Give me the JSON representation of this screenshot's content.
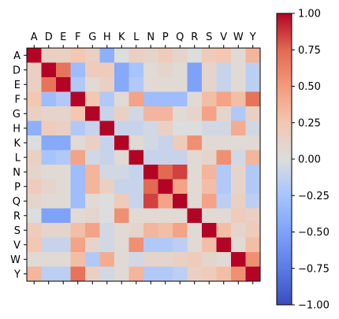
{
  "chart_data": {
    "type": "heatmap",
    "title": "",
    "xlabel": "",
    "ylabel": "",
    "x_labels": [
      "A",
      "D",
      "E",
      "F",
      "G",
      "H",
      "K",
      "L",
      "N",
      "P",
      "Q",
      "R",
      "S",
      "V",
      "W",
      "Y"
    ],
    "y_labels": [
      "A",
      "D",
      "E",
      "F",
      "G",
      "H",
      "K",
      "L",
      "N",
      "P",
      "Q",
      "R",
      "S",
      "V",
      "W",
      "Y"
    ],
    "x_tick_position": "top",
    "colormap": "coolwarm",
    "vmin": -1.0,
    "vmax": 1.0,
    "colorbar_ticks": [
      -1.0,
      -0.75,
      -0.5,
      -0.25,
      0.0,
      0.25,
      0.5,
      0.75,
      1.0
    ],
    "colorbar_tick_labels": [
      "−1.00",
      "−0.75",
      "−0.50",
      "−0.25",
      "0.00",
      "0.25",
      "0.50",
      "0.75",
      "1.00"
    ],
    "values": [
      [
        1.0,
        0.15,
        0.15,
        0.25,
        0.15,
        -0.4,
        0.0,
        0.15,
        0.1,
        0.2,
        0.1,
        0.0,
        0.2,
        0.25,
        0.05,
        0.35
      ],
      [
        0.15,
        1.0,
        0.7,
        -0.3,
        0.2,
        0.2,
        -0.45,
        -0.25,
        0.05,
        0.1,
        0.05,
        -0.5,
        0.1,
        -0.1,
        0.05,
        -0.15
      ],
      [
        0.15,
        0.7,
        1.0,
        -0.2,
        0.05,
        0.15,
        -0.45,
        -0.2,
        0.05,
        0.05,
        0.05,
        -0.5,
        0.1,
        -0.1,
        0.05,
        -0.15
      ],
      [
        0.25,
        -0.3,
        -0.2,
        1.0,
        0.25,
        -0.2,
        0.05,
        0.45,
        -0.3,
        -0.3,
        -0.3,
        0.05,
        0.3,
        0.45,
        0.3,
        0.7
      ],
      [
        0.15,
        0.1,
        0.1,
        0.25,
        1.0,
        -0.1,
        0.15,
        -0.05,
        0.35,
        0.35,
        0.05,
        0.1,
        0.45,
        0.1,
        -0.2,
        0.15
      ],
      [
        -0.4,
        0.2,
        0.15,
        -0.2,
        -0.1,
        1.0,
        -0.1,
        -0.1,
        -0.05,
        0.15,
        0.0,
        0.0,
        -0.05,
        -0.05,
        0.4,
        -0.05
      ],
      [
        0.0,
        -0.45,
        -0.45,
        0.05,
        0.15,
        -0.1,
        1.0,
        0.05,
        -0.05,
        -0.1,
        0.2,
        0.55,
        0.05,
        0.05,
        0.05,
        0.05
      ],
      [
        0.15,
        -0.25,
        -0.2,
        0.45,
        -0.05,
        -0.1,
        0.05,
        1.0,
        -0.1,
        -0.1,
        -0.1,
        0.05,
        0.1,
        0.55,
        -0.05,
        0.35
      ],
      [
        0.1,
        0.05,
        0.05,
        -0.3,
        0.35,
        -0.05,
        -0.05,
        -0.1,
        1.0,
        0.75,
        0.85,
        0.05,
        0.35,
        -0.2,
        0.1,
        -0.2
      ],
      [
        0.2,
        0.1,
        0.05,
        -0.3,
        0.35,
        0.15,
        -0.1,
        -0.1,
        0.75,
        1.0,
        0.45,
        0.05,
        0.3,
        -0.2,
        0.1,
        -0.2
      ],
      [
        0.1,
        0.05,
        0.05,
        -0.3,
        0.05,
        0.0,
        0.2,
        -0.1,
        0.85,
        0.45,
        1.0,
        0.05,
        0.45,
        -0.15,
        0.15,
        -0.15
      ],
      [
        0.0,
        -0.5,
        -0.5,
        0.05,
        0.1,
        0.0,
        0.55,
        0.05,
        0.05,
        0.05,
        0.05,
        1.0,
        0.05,
        0.05,
        0.2,
        0.15
      ],
      [
        0.2,
        0.1,
        0.1,
        0.3,
        0.45,
        -0.05,
        0.05,
        0.1,
        0.35,
        0.3,
        0.45,
        0.05,
        1.0,
        0.3,
        0.1,
        0.2
      ],
      [
        0.25,
        -0.1,
        -0.1,
        0.45,
        0.1,
        -0.05,
        0.05,
        0.55,
        -0.2,
        -0.2,
        -0.15,
        0.05,
        0.3,
        1.0,
        0.05,
        0.3
      ],
      [
        0.05,
        0.05,
        0.05,
        0.3,
        -0.2,
        0.4,
        0.05,
        -0.05,
        0.1,
        0.1,
        0.15,
        0.2,
        0.1,
        0.05,
        1.0,
        0.55
      ],
      [
        0.35,
        -0.15,
        -0.15,
        0.7,
        0.15,
        -0.05,
        0.05,
        0.35,
        -0.2,
        -0.2,
        -0.15,
        0.15,
        0.2,
        0.3,
        0.55,
        1.0
      ]
    ]
  }
}
